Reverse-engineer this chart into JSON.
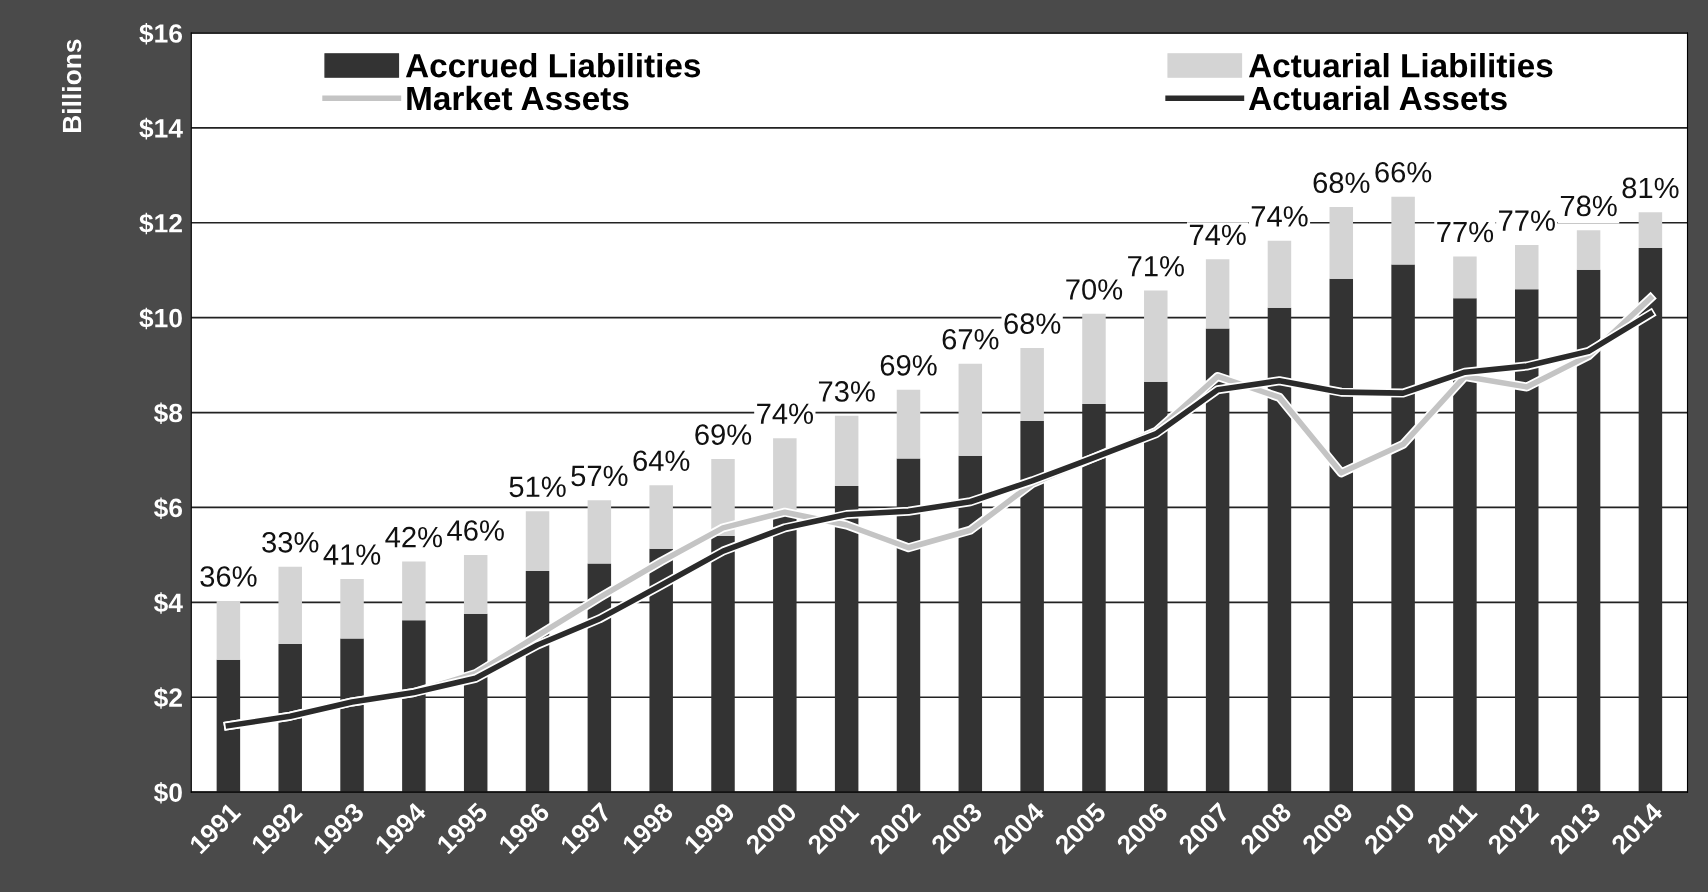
{
  "chart_data": {
    "type": "bar",
    "stacked": true,
    "ylabel": "Billions",
    "categories": [
      "1991",
      "1992",
      "1993",
      "1994",
      "1995",
      "1996",
      "1997",
      "1998",
      "1999",
      "2000",
      "2001",
      "2002",
      "2003",
      "2004",
      "2005",
      "2006",
      "2007",
      "2008",
      "2009",
      "2010",
      "2011",
      "2012",
      "2013",
      "2014"
    ],
    "series": [
      {
        "name": "Accrued Liabilities",
        "color": "#333333",
        "values": [
          2.79,
          3.12,
          3.24,
          3.62,
          3.76,
          4.66,
          4.82,
          5.13,
          5.4,
          5.85,
          6.45,
          7.03,
          7.09,
          7.82,
          8.18,
          8.65,
          9.77,
          10.21,
          10.82,
          11.12,
          10.41,
          10.6,
          11.01,
          11.47
        ]
      },
      {
        "name": "Actuarial Liabilities",
        "color": "#d4d4d4",
        "values": [
          1.24,
          1.63,
          1.25,
          1.24,
          1.24,
          1.26,
          1.33,
          1.34,
          1.62,
          1.61,
          1.48,
          1.45,
          1.94,
          1.54,
          1.9,
          1.92,
          1.46,
          1.41,
          1.51,
          1.43,
          0.88,
          0.93,
          0.83,
          0.75
        ]
      },
      {
        "name": "Market Assets",
        "type": "line",
        "color": "#c4c4c4",
        "values": [
          1.4,
          1.6,
          1.9,
          2.1,
          2.5,
          3.3,
          4.1,
          4.86,
          5.57,
          5.9,
          5.63,
          5.15,
          5.52,
          6.5,
          7.05,
          7.6,
          8.76,
          8.32,
          6.73,
          7.33,
          8.76,
          8.54,
          9.2,
          10.41
        ]
      },
      {
        "name": "Actuarial Assets",
        "type": "line",
        "color": "#2a2a2a",
        "values": [
          1.4,
          1.6,
          1.9,
          2.1,
          2.4,
          3.1,
          3.65,
          4.36,
          5.08,
          5.57,
          5.85,
          5.92,
          6.12,
          6.56,
          7.05,
          7.55,
          8.48,
          8.67,
          8.43,
          8.41,
          8.85,
          8.98,
          9.29,
          10.08
        ]
      }
    ],
    "ylim": [
      0,
      16
    ],
    "yticks": [
      {
        "value": 0,
        "label": "$0"
      },
      {
        "value": 2,
        "label": "$2"
      },
      {
        "value": 4,
        "label": "$4"
      },
      {
        "value": 6,
        "label": "$6"
      },
      {
        "value": 8,
        "label": "$8"
      },
      {
        "value": 10,
        "label": "$10"
      },
      {
        "value": 12,
        "label": "$12"
      },
      {
        "value": 14,
        "label": "$14"
      },
      {
        "value": 16,
        "label": "$16"
      }
    ],
    "grid": "y",
    "legend": "top",
    "annotations": [
      {
        "text": "36%",
        "x": "1991",
        "y": 4.03
      },
      {
        "text": "33%",
        "x": "1992",
        "y": 4.75
      },
      {
        "text": "41%",
        "x": "1993",
        "y": 4.49
      },
      {
        "text": "42%",
        "x": "1994",
        "y": 4.86
      },
      {
        "text": "46%",
        "x": "1995",
        "y": 5.0
      },
      {
        "text": "51%",
        "x": "1996",
        "y": 5.92
      },
      {
        "text": "57%",
        "x": "1997",
        "y": 6.15
      },
      {
        "text": "64%",
        "x": "1998",
        "y": 6.47
      },
      {
        "text": "69%",
        "x": "1999",
        "y": 7.02
      },
      {
        "text": "74%",
        "x": "2000",
        "y": 7.46
      },
      {
        "text": "73%",
        "x": "2001",
        "y": 7.93
      },
      {
        "text": "69%",
        "x": "2002",
        "y": 8.48
      },
      {
        "text": "67%",
        "x": "2003",
        "y": 9.03
      },
      {
        "text": "68%",
        "x": "2004",
        "y": 9.36
      },
      {
        "text": "70%",
        "x": "2005",
        "y": 10.08
      },
      {
        "text": "71%",
        "x": "2006",
        "y": 10.57
      },
      {
        "text": "74%",
        "x": "2007",
        "y": 11.23
      },
      {
        "text": "74%",
        "x": "2008",
        "y": 11.62
      },
      {
        "text": "68%",
        "x": "2009",
        "y": 12.33
      },
      {
        "text": "66%",
        "x": "2010",
        "y": 12.55
      },
      {
        "text": "77%",
        "x": "2011",
        "y": 11.29
      },
      {
        "text": "77%",
        "x": "2012",
        "y": 11.53
      },
      {
        "text": "78%",
        "x": "2013",
        "y": 11.84
      },
      {
        "text": "81%",
        "x": "2014",
        "y": 12.22
      }
    ]
  }
}
